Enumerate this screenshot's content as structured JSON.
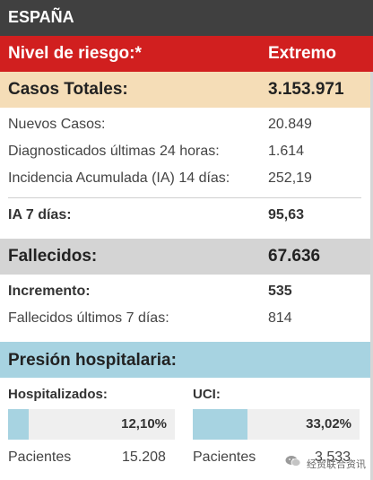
{
  "header": {
    "title": "ESPAÑA"
  },
  "risk": {
    "label": "Nivel de riesgo:*",
    "value": "Extremo"
  },
  "cases": {
    "label": "Casos Totales:",
    "value": "3.153.971",
    "rows": [
      {
        "label": "Nuevos Casos:",
        "value": "20.849"
      },
      {
        "label": "Diagnosticados últimas 24 horas:",
        "value": "1.614"
      },
      {
        "label": "Incidencia Acumulada (IA) 14 días:",
        "value": "252,19"
      }
    ],
    "ia7": {
      "label": "IA 7 días:",
      "value": "95,63"
    }
  },
  "deaths": {
    "label": "Fallecidos:",
    "value": "67.636",
    "rows": [
      {
        "label": "Incremento:",
        "value": "535"
      },
      {
        "label": "Fallecidos últimos 7 días:",
        "value": "814"
      }
    ]
  },
  "hospital": {
    "label": "Presión hospitalaria:",
    "hospitalized": {
      "label": "Hospitalizados:",
      "percent_text": "12,10%",
      "fill_fraction": 0.121,
      "patients_label": "Pacientes",
      "patients_value": "15.208"
    },
    "icu": {
      "label": "UCI:",
      "percent_text": "33,02%",
      "fill_fraction": 0.3302,
      "patients_label": "Pacientes",
      "patients_value": "3.533"
    }
  },
  "watermark": {
    "text": "经贸联合资讯",
    "icon": "wechat-icon"
  },
  "colors": {
    "header_bg": "#404040",
    "risk_bg": "#d11f1f",
    "cases_bg": "#f5ddb7",
    "deaths_bg": "#d4d4d4",
    "hospital_bg": "#a7d3e1",
    "bar_fill": "#a7d3e1",
    "bar_track": "#efefef"
  }
}
